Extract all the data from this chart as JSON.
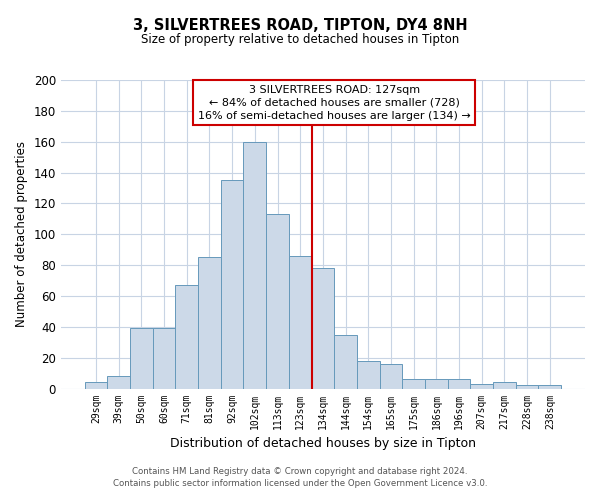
{
  "title": "3, SILVERTREES ROAD, TIPTON, DY4 8NH",
  "subtitle": "Size of property relative to detached houses in Tipton",
  "xlabel": "Distribution of detached houses by size in Tipton",
  "ylabel": "Number of detached properties",
  "bar_labels": [
    "29sqm",
    "39sqm",
    "50sqm",
    "60sqm",
    "71sqm",
    "81sqm",
    "92sqm",
    "102sqm",
    "113sqm",
    "123sqm",
    "134sqm",
    "144sqm",
    "154sqm",
    "165sqm",
    "175sqm",
    "186sqm",
    "196sqm",
    "207sqm",
    "217sqm",
    "228sqm",
    "238sqm"
  ],
  "bar_values": [
    4,
    8,
    39,
    39,
    67,
    85,
    135,
    160,
    113,
    86,
    78,
    35,
    18,
    16,
    6,
    6,
    6,
    3,
    4,
    2,
    2
  ],
  "bar_color": "#ccd9e8",
  "bar_edge_color": "#6699bb",
  "property_line_x": 9.5,
  "property_line_color": "#cc0000",
  "annotation_title": "3 SILVERTREES ROAD: 127sqm",
  "annotation_line1": "← 84% of detached houses are smaller (728)",
  "annotation_line2": "16% of semi-detached houses are larger (134) →",
  "annotation_box_color": "#ffffff",
  "annotation_box_edge_color": "#cc0000",
  "footer_line1": "Contains HM Land Registry data © Crown copyright and database right 2024.",
  "footer_line2": "Contains public sector information licensed under the Open Government Licence v3.0.",
  "bg_color": "#ffffff",
  "grid_color": "#c8d4e4",
  "ylim": [
    0,
    200
  ],
  "yticks": [
    0,
    20,
    40,
    60,
    80,
    100,
    120,
    140,
    160,
    180,
    200
  ]
}
